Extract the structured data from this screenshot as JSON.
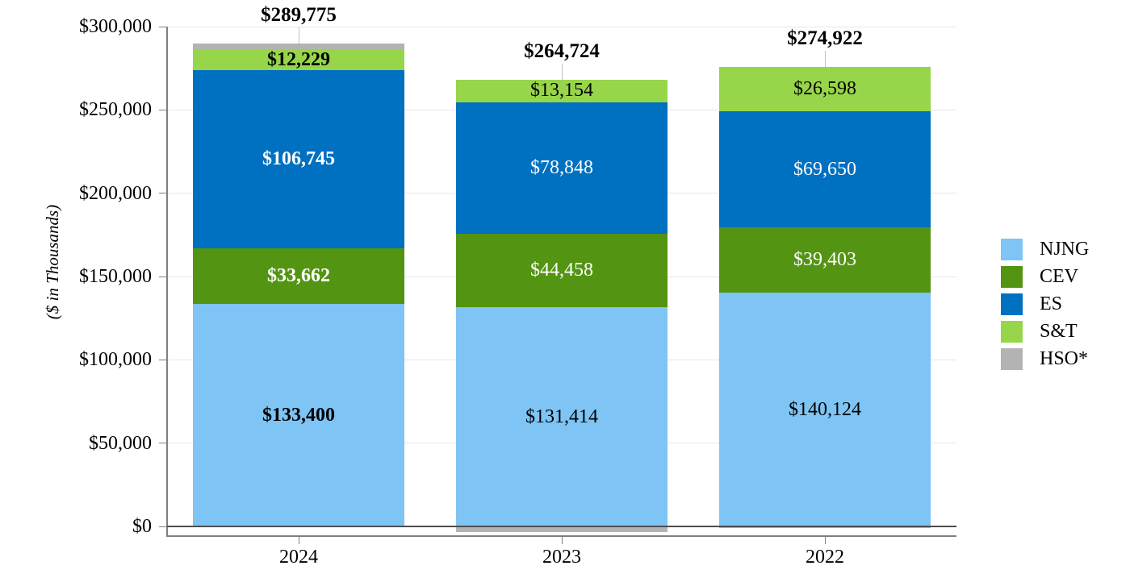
{
  "palette": {
    "gridline": "#E7E7E7",
    "axis": "#808080",
    "zero_line": "#4D4D4D",
    "leader_line": "#C0C0C0",
    "text": "#000000"
  },
  "chart_data": {
    "type": "bar",
    "stacked": true,
    "title": "",
    "xlabel": "",
    "ylabel": "($ in Thousands)",
    "grid": true,
    "legend_position": "right",
    "categories": [
      "2024",
      "2023",
      "2022"
    ],
    "category_label_bold": [
      true,
      false,
      false
    ],
    "series": [
      {
        "name": "NJNG",
        "color": "#7EC4F4",
        "values": [
          133400,
          131414,
          140124
        ],
        "data_labels": [
          "$133,400",
          "$131,414",
          "$140,124"
        ],
        "label_color": "#000000"
      },
      {
        "name": "CEV",
        "color": "#549413",
        "values": [
          33662,
          44458,
          39403
        ],
        "data_labels": [
          "$33,662",
          "$44,458",
          "$39,403"
        ],
        "label_color": "#FFFFFF"
      },
      {
        "name": "ES",
        "color": "#0070C0",
        "values": [
          106745,
          78848,
          69650
        ],
        "data_labels": [
          "$106,745",
          "$78,848",
          "$69,650"
        ],
        "label_color": "#FFFFFF"
      },
      {
        "name": "S&T",
        "color": "#97D54A",
        "values": [
          12229,
          13154,
          26598
        ],
        "data_labels": [
          "$12,229",
          "$13,154",
          "$26,598"
        ],
        "label_color": "#000000"
      },
      {
        "name": "HSO*",
        "color": "#B3B3B3",
        "values": [
          3739,
          -3150,
          -853
        ],
        "data_labels": null,
        "label_color": null
      }
    ],
    "totals": {
      "values": [
        289775,
        264724,
        274922
      ],
      "labels": [
        "$289,775",
        "$264,724",
        "$274,922"
      ]
    },
    "y_axis": {
      "min": 0,
      "max": 300000,
      "tick_step": 50000,
      "tick_labels": [
        "$0",
        "$50,000",
        "$100,000",
        "$150,000",
        "$200,000",
        "$250,000",
        "$300,000"
      ]
    },
    "legend": {
      "entries": [
        "NJNG",
        "CEV",
        "ES",
        "S&T",
        "HSO*"
      ]
    }
  }
}
